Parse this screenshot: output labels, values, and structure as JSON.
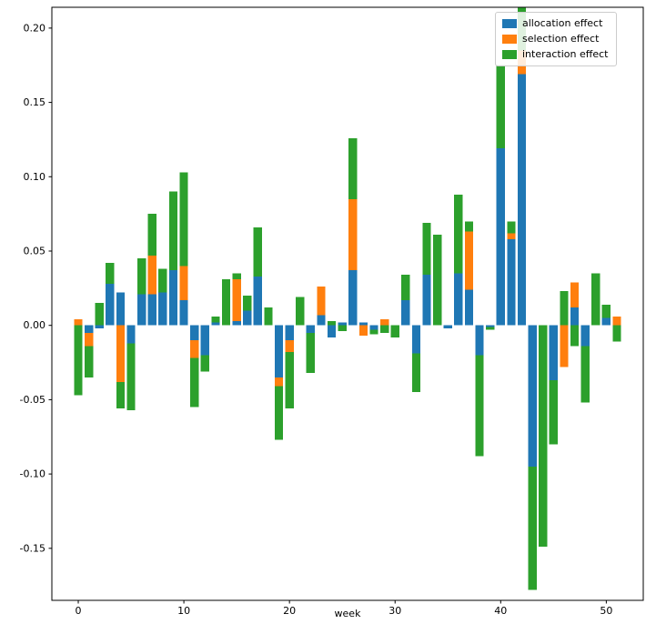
{
  "figure": {
    "background": "#ffffff",
    "axes_edge_color": "#000000",
    "tick_color": "#000000"
  },
  "chart_data": {
    "type": "bar",
    "stacked": true,
    "title": "",
    "xlabel": "week",
    "ylabel": "",
    "grid": false,
    "legend_position": "upper right",
    "bar_width": 0.8,
    "xlim": [
      -2.5,
      53.5
    ],
    "ylim": [
      -0.185,
      0.214
    ],
    "xticks": [
      0,
      10,
      20,
      30,
      40,
      50
    ],
    "yticks": [
      -0.15,
      -0.1,
      -0.05,
      0.0,
      0.05,
      0.1,
      0.15,
      0.2
    ],
    "x": [
      0,
      1,
      2,
      3,
      4,
      5,
      6,
      7,
      8,
      9,
      10,
      11,
      12,
      13,
      14,
      15,
      16,
      17,
      18,
      19,
      20,
      21,
      22,
      23,
      24,
      25,
      26,
      27,
      28,
      29,
      30,
      31,
      32,
      33,
      34,
      35,
      36,
      37,
      38,
      39,
      40,
      41,
      42,
      43,
      44,
      45,
      46,
      47,
      48,
      49,
      50,
      51
    ],
    "series": [
      {
        "name": "allocation effect",
        "color": "#1f77b4",
        "values": [
          0.0,
          -0.005,
          -0.002,
          0.028,
          0.022,
          -0.012,
          0.021,
          0.021,
          0.022,
          0.037,
          0.017,
          -0.01,
          -0.02,
          0.002,
          0.0,
          0.003,
          0.01,
          0.033,
          0.0,
          -0.035,
          -0.01,
          0.0,
          -0.005,
          0.007,
          -0.008,
          0.002,
          0.037,
          0.002,
          -0.003,
          0.0,
          0.0,
          0.017,
          -0.019,
          0.034,
          0.0,
          -0.002,
          0.035,
          0.024,
          -0.02,
          -0.001,
          0.119,
          0.058,
          0.169,
          -0.095,
          0.0,
          -0.037,
          0.0,
          0.012,
          -0.014,
          0.0,
          0.005,
          0.0
        ]
      },
      {
        "name": "selection effect",
        "color": "#ff7f0e",
        "values": [
          0.004,
          -0.009,
          0.0,
          0.0,
          -0.038,
          0.0,
          0.0,
          0.026,
          0.0,
          0.0,
          0.023,
          -0.012,
          0.0,
          0.0,
          0.0,
          0.028,
          0.0,
          0.0,
          0.0,
          -0.006,
          -0.008,
          0.0,
          0.0,
          0.019,
          0.0,
          0.0,
          0.048,
          -0.007,
          0.0,
          0.004,
          0.0,
          0.0,
          0.0,
          0.0,
          0.0,
          0.0,
          0.0,
          0.039,
          0.0,
          0.0,
          0.0,
          0.004,
          0.016,
          0.0,
          0.0,
          0.0,
          -0.028,
          0.017,
          0.0,
          0.0,
          0.0,
          0.006
        ]
      },
      {
        "name": "interaction effect",
        "color": "#2ca02c",
        "values": [
          -0.047,
          -0.021,
          0.015,
          0.014,
          -0.018,
          -0.045,
          0.024,
          0.028,
          0.016,
          0.053,
          0.063,
          -0.033,
          -0.011,
          0.004,
          0.031,
          0.004,
          0.01,
          0.033,
          0.012,
          -0.036,
          -0.038,
          0.019,
          -0.027,
          0.0,
          0.003,
          -0.004,
          0.041,
          0.0,
          -0.003,
          -0.005,
          -0.008,
          0.017,
          -0.026,
          0.035,
          0.061,
          0.0,
          0.053,
          0.007,
          -0.068,
          -0.002,
          0.056,
          0.008,
          0.055,
          -0.083,
          -0.149,
          -0.043,
          0.023,
          -0.014,
          -0.038,
          0.035,
          0.009,
          -0.011
        ]
      }
    ]
  }
}
